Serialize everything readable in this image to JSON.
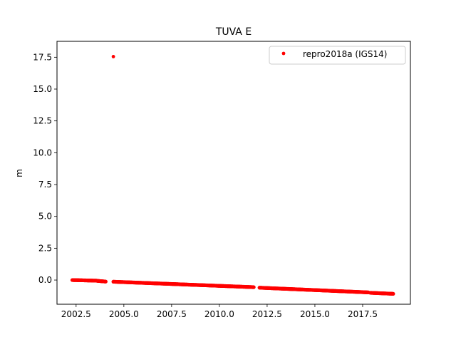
{
  "chart_data": {
    "type": "scatter",
    "title": "TUVA E",
    "xlabel": "",
    "ylabel": "m",
    "xlim": [
      2001.5,
      2020.0
    ],
    "ylim": [
      -1.9,
      18.75
    ],
    "x_ticks": [
      "2002.5",
      "2005.0",
      "2007.5",
      "2010.0",
      "2012.5",
      "2015.0",
      "2017.5"
    ],
    "y_ticks": [
      "0.0",
      "2.5",
      "5.0",
      "7.5",
      "10.0",
      "12.5",
      "15.0",
      "17.5"
    ],
    "grid": false,
    "legend_position": "top-right",
    "series": [
      {
        "name": "repro2018a (IGS14)",
        "color": "#ff0000",
        "marker": "dot",
        "segments": [
          {
            "x_start": 2002.3,
            "x_end": 2003.6,
            "y_start": 0.0,
            "y_end": -0.05
          },
          {
            "x_start": 2003.6,
            "x_end": 2004.05,
            "y_start": -0.06,
            "y_end": -0.12
          },
          {
            "x_start": 2004.45,
            "x_end": 2011.8,
            "y_start": -0.13,
            "y_end": -0.56
          },
          {
            "x_start": 2012.1,
            "x_end": 2017.8,
            "y_start": -0.6,
            "y_end": -0.97
          },
          {
            "x_start": 2017.9,
            "x_end": 2019.1,
            "y_start": -1.0,
            "y_end": -1.08
          }
        ],
        "outliers": [
          {
            "x": 2004.45,
            "y": 17.55
          }
        ]
      }
    ]
  }
}
